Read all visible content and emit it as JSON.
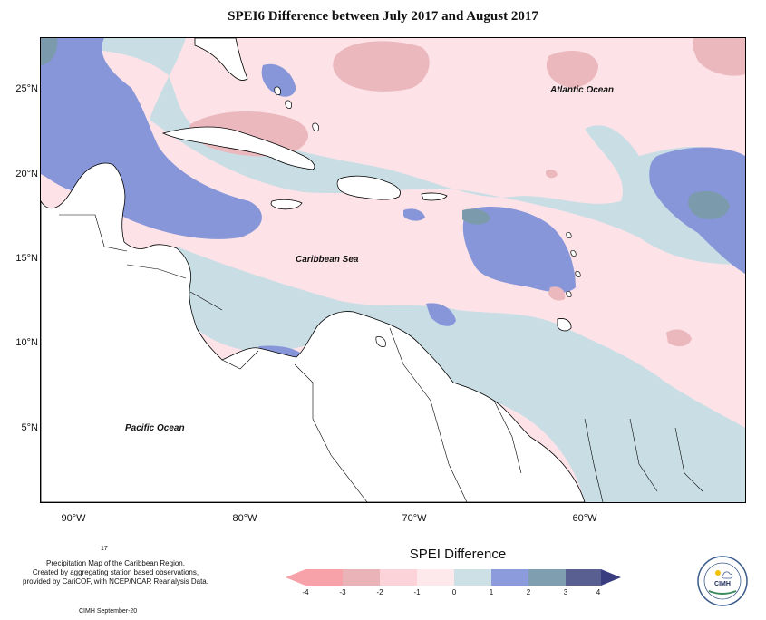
{
  "title": "SPEI6 Difference between July 2017 and August 2017",
  "axes": {
    "lat_labels": [
      "25°N",
      "20°N",
      "15°N",
      "10°N",
      "5°N"
    ],
    "lon_labels": [
      "90°W",
      "80°W",
      "70°W",
      "60°W"
    ]
  },
  "places": {
    "atlantic": "Atlantic Ocean",
    "caribbean": "Caribbean Sea",
    "pacific": "Pacific Ocean"
  },
  "legend": {
    "title": "SPEI Difference",
    "ticks": [
      "-4",
      "-3",
      "-2",
      "-1",
      "0",
      "1",
      "2",
      "3",
      "4"
    ],
    "colors": [
      "#f7a1a8",
      "#eab3b8",
      "#fdd3da",
      "#fde9ec",
      "#cde0e6",
      "#8c9bdb",
      "#7f9eb0",
      "#5a5f92",
      "#3a3c80"
    ]
  },
  "credits": {
    "small_number": "17",
    "line1": "Precipitation Map of the Caribbean Region.",
    "line2": "Created by aggregating station based observations,",
    "line3": "provided by CariCOF, with NCEP/NCAR Reanalysis Data.",
    "date": "CIMH September-20"
  },
  "logo": {
    "text": "CIMH"
  },
  "colors": {
    "dry_strong": "#f4a5ae",
    "dry_mod": "#eab8bd",
    "dry_light": "#fdd6dc",
    "neutral_dry": "#fde6ea",
    "neutral_wet": "#c9dde5",
    "wet_light": "#8796d8",
    "wet_mod": "#7b9bac",
    "land": "#ffffff"
  }
}
